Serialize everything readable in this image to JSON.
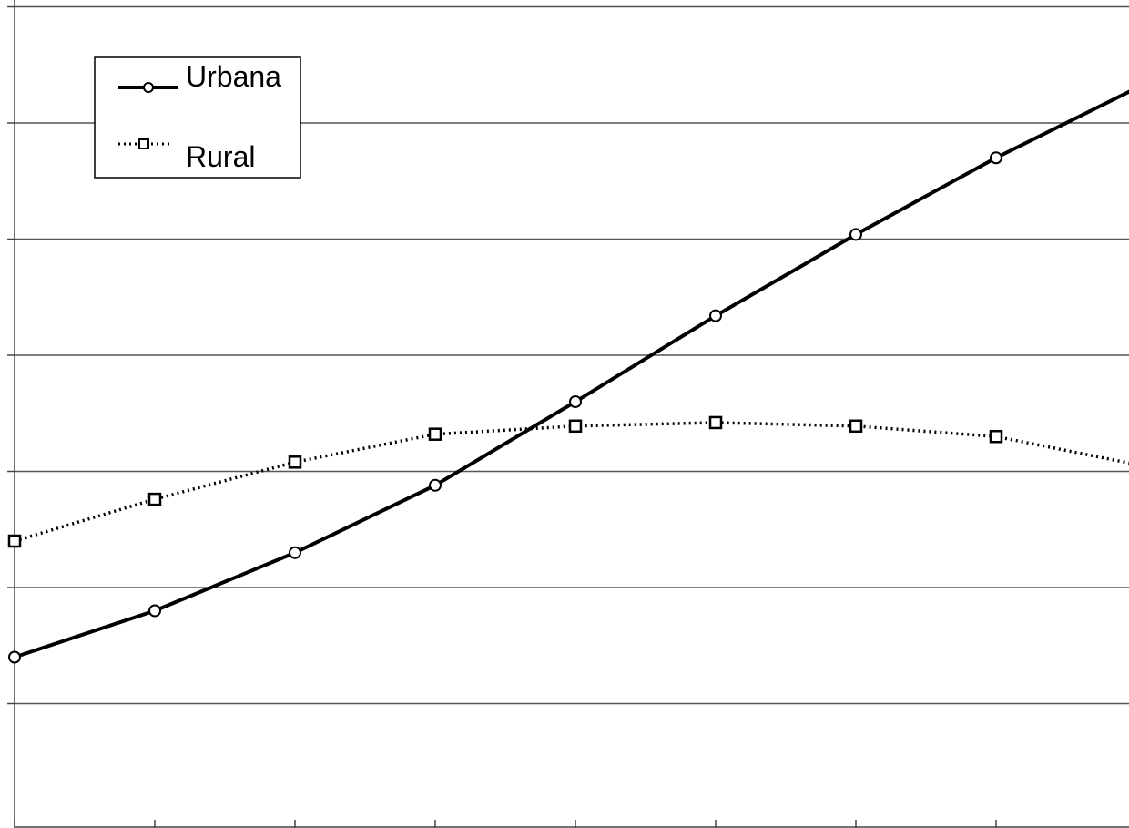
{
  "chart_data": {
    "type": "line",
    "x": [
      0,
      1,
      2,
      3,
      4,
      5,
      6,
      7,
      8
    ],
    "ylim": [
      0,
      7
    ],
    "grid": true,
    "legend_position": "top-left",
    "series": [
      {
        "name": "Urbana",
        "values": [
          1.4,
          1.8,
          2.3,
          2.88,
          3.6,
          4.34,
          5.04,
          5.7,
          6.3
        ],
        "line_style": "solid",
        "marker": "circle",
        "color": "#000000"
      },
      {
        "name": "Rural",
        "values": [
          2.4,
          2.76,
          3.08,
          3.32,
          3.39,
          3.42,
          3.39,
          3.3,
          3.06
        ],
        "line_style": "dotted",
        "marker": "square",
        "color": "#000000"
      }
    ]
  },
  "colors": {
    "background": "#ffffff",
    "gridline": "#555555",
    "axis": "#444444",
    "series": "#000000"
  }
}
